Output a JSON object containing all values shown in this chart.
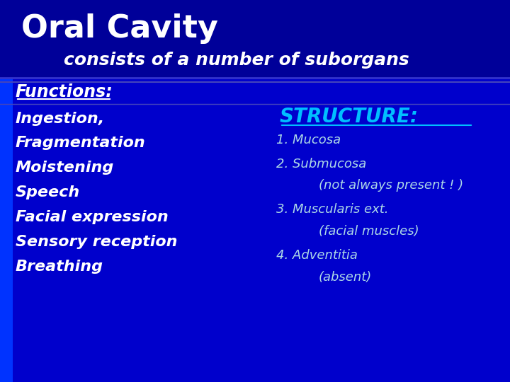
{
  "bg_color": "#0000CC",
  "title": "Oral Cavity",
  "title_color": "#FFFFFF",
  "subtitle": "consists of a number of suborgans",
  "subtitle_color": "#FFFFFF",
  "functions_header": "Functions:",
  "functions_color": "#FFFFFF",
  "functions_list": [
    "Ingestion,",
    "Fragmentation",
    "Moistening",
    "Speech",
    "Facial expression",
    "Sensory reception",
    "Breathing"
  ],
  "structure_header": "STRUCTURE:",
  "structure_header_color": "#00BFFF",
  "structure_items": [
    {
      "text": "1. Mucosa",
      "indent": false
    },
    {
      "text": "2. Submucosa",
      "indent": false
    },
    {
      "text": "(not always present ! )",
      "indent": true
    },
    {
      "text": "3. Muscularis ext.",
      "indent": false
    },
    {
      "text": "(facial muscles)",
      "indent": true
    },
    {
      "text": "4. Adventitia",
      "indent": false
    },
    {
      "text": "(absent)",
      "indent": true
    }
  ],
  "structure_color": "#ADD8E6",
  "left_bar_color": "#0033FF",
  "header_bar_color": "#000099"
}
